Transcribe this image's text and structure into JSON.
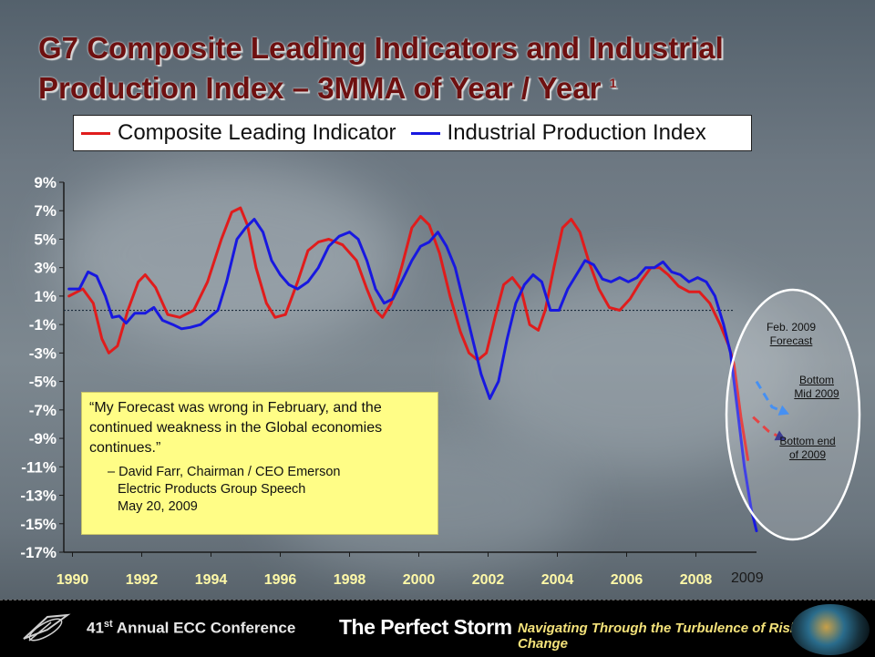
{
  "slide": {
    "title": "G7 Composite Leading Indicators and Industrial Production Index – 3MMA of Year / Year",
    "title_note": "1"
  },
  "legend": [
    {
      "label": "Composite Leading Indicator",
      "color": "#e01c1c"
    },
    {
      "label": "Industrial Production Index",
      "color": "#1818e0"
    }
  ],
  "chart_data": {
    "type": "line",
    "title": "G7 Composite Leading Indicators and Industrial Production Index – 3MMA of Year / Year",
    "xlabel": "",
    "ylabel": "",
    "xlim": [
      1989.75,
      2009.75
    ],
    "ylim": [
      -17,
      9
    ],
    "yticks": [
      9,
      7,
      5,
      3,
      1,
      -1,
      -3,
      -5,
      -7,
      -9,
      -11,
      -13,
      -15,
      -17
    ],
    "ytick_labels": [
      "9%",
      "7%",
      "5%",
      "3%",
      "1%",
      "-1%",
      "-3%",
      "-5%",
      "-7%",
      "-9%",
      "-11%",
      "-13%",
      "-15%",
      "-17%"
    ],
    "xticks": [
      1990,
      1992,
      1994,
      1996,
      1998,
      2000,
      2002,
      2004,
      2006,
      2008
    ],
    "xtick_labels": [
      "1990",
      "1992",
      "1994",
      "1996",
      "1998",
      "2000",
      "2002",
      "2004",
      "2006",
      "2008"
    ],
    "reference_line": 0,
    "grid": false,
    "legend_position": "top",
    "series": [
      {
        "name": "Composite Leading Indicator",
        "color": "#e01c1c",
        "points": [
          [
            1989.9,
            1.0
          ],
          [
            1990.3,
            1.5
          ],
          [
            1990.6,
            0.5
          ],
          [
            1990.85,
            -2.0
          ],
          [
            1991.05,
            -3.0
          ],
          [
            1991.3,
            -2.5
          ],
          [
            1991.6,
            0.0
          ],
          [
            1991.9,
            2.0
          ],
          [
            1992.1,
            2.5
          ],
          [
            1992.4,
            1.6
          ],
          [
            1992.75,
            -0.3
          ],
          [
            1993.1,
            -0.5
          ],
          [
            1993.5,
            0.0
          ],
          [
            1993.9,
            2.0
          ],
          [
            1994.3,
            5.0
          ],
          [
            1994.6,
            6.9
          ],
          [
            1994.85,
            7.2
          ],
          [
            1995.05,
            6.0
          ],
          [
            1995.3,
            3.0
          ],
          [
            1995.6,
            0.5
          ],
          [
            1995.85,
            -0.5
          ],
          [
            1996.15,
            -0.3
          ],
          [
            1996.5,
            2.0
          ],
          [
            1996.8,
            4.2
          ],
          [
            1997.1,
            4.8
          ],
          [
            1997.4,
            5.0
          ],
          [
            1997.8,
            4.6
          ],
          [
            1998.2,
            3.5
          ],
          [
            1998.5,
            1.5
          ],
          [
            1998.75,
            0.0
          ],
          [
            1998.95,
            -0.5
          ],
          [
            1999.2,
            0.5
          ],
          [
            1999.5,
            3.0
          ],
          [
            1999.8,
            5.8
          ],
          [
            2000.05,
            6.6
          ],
          [
            2000.3,
            6.0
          ],
          [
            2000.6,
            4.0
          ],
          [
            2000.9,
            1.0
          ],
          [
            2001.2,
            -1.5
          ],
          [
            2001.45,
            -3.0
          ],
          [
            2001.7,
            -3.5
          ],
          [
            2001.95,
            -3.0
          ],
          [
            2002.2,
            -0.5
          ],
          [
            2002.45,
            1.8
          ],
          [
            2002.7,
            2.3
          ],
          [
            2002.95,
            1.5
          ],
          [
            2003.2,
            -1.0
          ],
          [
            2003.45,
            -1.4
          ],
          [
            2003.65,
            0.0
          ],
          [
            2003.9,
            3.0
          ],
          [
            2004.15,
            5.8
          ],
          [
            2004.4,
            6.4
          ],
          [
            2004.65,
            5.5
          ],
          [
            2004.9,
            3.5
          ],
          [
            2005.2,
            1.5
          ],
          [
            2005.5,
            0.2
          ],
          [
            2005.8,
            0.0
          ],
          [
            2006.1,
            0.8
          ],
          [
            2006.4,
            2.0
          ],
          [
            2006.7,
            3.0
          ],
          [
            2006.95,
            3.0
          ],
          [
            2007.2,
            2.5
          ],
          [
            2007.5,
            1.7
          ],
          [
            2007.8,
            1.3
          ],
          [
            2008.1,
            1.3
          ],
          [
            2008.4,
            0.5
          ],
          [
            2008.7,
            -1.0
          ],
          [
            2008.95,
            -2.5
          ],
          [
            2009.1,
            -3.8
          ],
          [
            2009.3,
            -7.5
          ],
          [
            2009.5,
            -10.5
          ]
        ]
      },
      {
        "name": "Industrial Production Index",
        "color": "#1818e0",
        "points": [
          [
            1989.9,
            1.5
          ],
          [
            1990.2,
            1.5
          ],
          [
            1990.45,
            2.7
          ],
          [
            1990.7,
            2.4
          ],
          [
            1990.95,
            1.0
          ],
          [
            1991.15,
            -0.5
          ],
          [
            1991.35,
            -0.4
          ],
          [
            1991.55,
            -0.9
          ],
          [
            1991.8,
            -0.2
          ],
          [
            1992.1,
            -0.2
          ],
          [
            1992.35,
            0.2
          ],
          [
            1992.6,
            -0.7
          ],
          [
            1992.9,
            -1.0
          ],
          [
            1993.15,
            -1.3
          ],
          [
            1993.4,
            -1.2
          ],
          [
            1993.7,
            -1.0
          ],
          [
            1993.95,
            -0.5
          ],
          [
            1994.2,
            0.0
          ],
          [
            1994.45,
            2.0
          ],
          [
            1994.75,
            5.0
          ],
          [
            1995.0,
            5.8
          ],
          [
            1995.25,
            6.4
          ],
          [
            1995.5,
            5.5
          ],
          [
            1995.75,
            3.5
          ],
          [
            1996.0,
            2.5
          ],
          [
            1996.25,
            1.8
          ],
          [
            1996.5,
            1.5
          ],
          [
            1996.8,
            2.0
          ],
          [
            1997.1,
            3.0
          ],
          [
            1997.4,
            4.5
          ],
          [
            1997.7,
            5.2
          ],
          [
            1998.0,
            5.5
          ],
          [
            1998.25,
            5.0
          ],
          [
            1998.5,
            3.5
          ],
          [
            1998.75,
            1.5
          ],
          [
            1999.0,
            0.5
          ],
          [
            1999.25,
            0.8
          ],
          [
            1999.5,
            2.0
          ],
          [
            1999.8,
            3.5
          ],
          [
            2000.05,
            4.5
          ],
          [
            2000.3,
            4.8
          ],
          [
            2000.55,
            5.5
          ],
          [
            2000.8,
            4.5
          ],
          [
            2001.05,
            3.0
          ],
          [
            2001.3,
            0.5
          ],
          [
            2001.55,
            -2.0
          ],
          [
            2001.8,
            -4.5
          ],
          [
            2002.05,
            -6.2
          ],
          [
            2002.3,
            -5.0
          ],
          [
            2002.55,
            -2.0
          ],
          [
            2002.8,
            0.5
          ],
          [
            2003.05,
            1.8
          ],
          [
            2003.3,
            2.5
          ],
          [
            2003.55,
            2.0
          ],
          [
            2003.8,
            0.0
          ],
          [
            2004.05,
            0.0
          ],
          [
            2004.3,
            1.5
          ],
          [
            2004.55,
            2.5
          ],
          [
            2004.8,
            3.5
          ],
          [
            2005.05,
            3.2
          ],
          [
            2005.3,
            2.2
          ],
          [
            2005.55,
            2.0
          ],
          [
            2005.8,
            2.3
          ],
          [
            2006.05,
            2.0
          ],
          [
            2006.3,
            2.3
          ],
          [
            2006.55,
            3.0
          ],
          [
            2006.8,
            3.0
          ],
          [
            2007.05,
            3.4
          ],
          [
            2007.3,
            2.7
          ],
          [
            2007.55,
            2.5
          ],
          [
            2007.8,
            2.0
          ],
          [
            2008.05,
            2.3
          ],
          [
            2008.3,
            2.0
          ],
          [
            2008.55,
            1.0
          ],
          [
            2008.8,
            -1.0
          ],
          [
            2009.0,
            -3.0
          ],
          [
            2009.2,
            -7.0
          ],
          [
            2009.4,
            -11.0
          ],
          [
            2009.6,
            -14.0
          ],
          [
            2009.75,
            -15.5
          ]
        ]
      }
    ],
    "projections": [
      {
        "name": "Feb. 2009 Forecast",
        "color": "#1e78f0",
        "style": "dashed",
        "points": [
          [
            2009.75,
            -5.0
          ],
          [
            2010.2,
            -6.8
          ],
          [
            2010.6,
            -7.2
          ]
        ]
      },
      {
        "name": "Feb. 2009 Forecast",
        "color": "#e01c1c",
        "style": "dashed",
        "points": [
          [
            2009.65,
            -7.5
          ],
          [
            2010.1,
            -8.5
          ],
          [
            2010.5,
            -9.0
          ]
        ]
      }
    ]
  },
  "annotations": {
    "forecast_label": [
      "Feb. 2009",
      "Forecast"
    ],
    "bottom_mid_label": [
      "Bottom",
      "Mid 2009"
    ],
    "bottom_end_label": [
      "Bottom end",
      "of  2009"
    ],
    "extra_year": "2009"
  },
  "quote": {
    "text": "“My Forecast was wrong in February, and the continued weakness in the Global economies continues.”",
    "attribution_line1": "– David Farr, Chairman / CEO Emerson",
    "attribution_line2": "Electric Products Group Speech",
    "attribution_line3": "May 20, 2009"
  },
  "footer": {
    "conference_ordinal": "41",
    "conference_suffix": "st",
    "conference_name": "Annual ECC Conference",
    "tagline": "The Perfect Storm",
    "subtitle": "Navigating Through the Turbulence of Risk and Change"
  }
}
